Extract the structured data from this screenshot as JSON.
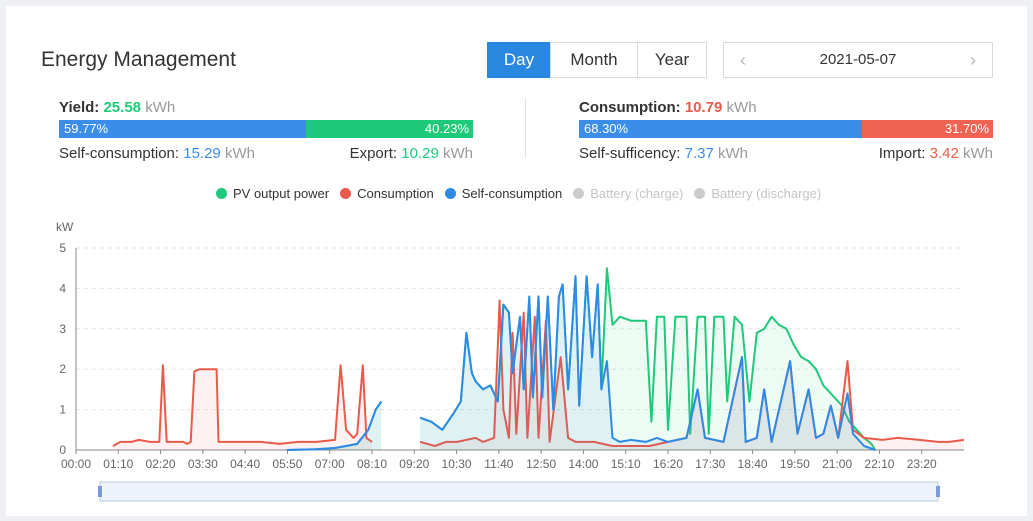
{
  "header": {
    "title": "Energy Management",
    "tabs": [
      {
        "label": "Day",
        "active": true
      },
      {
        "label": "Month",
        "active": false
      },
      {
        "label": "Year",
        "active": false
      }
    ],
    "date": "2021-05-07",
    "prev_icon": "chevron-left-icon",
    "next_icon": "chevron-right-icon"
  },
  "yield": {
    "label": "Yield:",
    "value": "25.58",
    "unit": "kWh",
    "self_pct": "59.77%",
    "export_pct": "40.23%",
    "self_fraction": 0.5977,
    "self_label": "Self-consumption:",
    "self_value": "15.29",
    "export_label": "Export:",
    "export_value": "10.29"
  },
  "consumption": {
    "label": "Consumption:",
    "value": "10.79",
    "unit": "kWh",
    "sufficiency_pct": "68.30%",
    "import_pct": "31.70%",
    "sufficiency_fraction": 0.683,
    "sufficiency_label": "Self-sufficency:",
    "sufficiency_value": "7.37",
    "import_label": "Import:",
    "import_value": "3.42"
  },
  "colors": {
    "pv": "#1fc97a",
    "consumption": "#ea5a4a",
    "self": "#2e8ae6",
    "disabled": "#cccccc",
    "accent": "#2a87e0"
  },
  "legend": [
    {
      "name": "PV output power",
      "color": "#1fc97a",
      "enabled": true
    },
    {
      "name": "Consumption",
      "color": "#ea5a4a",
      "enabled": true
    },
    {
      "name": "Self-consumption",
      "color": "#2e8ae6",
      "enabled": true
    },
    {
      "name": "Battery (charge)",
      "color": "#cccccc",
      "enabled": false
    },
    {
      "name": "Battery (discharge)",
      "color": "#cccccc",
      "enabled": false
    }
  ],
  "chart_data": {
    "type": "line",
    "ylabel": "kW",
    "ylim": [
      0,
      5
    ],
    "yticks": [
      0,
      1,
      2,
      3,
      4,
      5
    ],
    "xlim": [
      0,
      24
    ],
    "xtick_labels": [
      "00:00",
      "01:10",
      "02:20",
      "03:30",
      "04:40",
      "05:50",
      "07:00",
      "08:10",
      "09:20",
      "10:30",
      "11:40",
      "12:50",
      "14:00",
      "15:10",
      "16:20",
      "17:30",
      "18:40",
      "19:50",
      "21:00",
      "22:10",
      "23:20"
    ],
    "grid": "horizontal dashed",
    "series": [
      {
        "name": "PV output power",
        "color": "#1fc97a",
        "points": [
          [
            5.7,
            0
          ],
          [
            6.5,
            0.02
          ],
          [
            7.0,
            0.05
          ],
          [
            7.3,
            0.1
          ],
          [
            7.6,
            0.15
          ],
          [
            7.9,
            0.5
          ],
          [
            8.1,
            1.0
          ],
          [
            8.25,
            1.2
          ],
          [
            9.3,
            0.8
          ],
          [
            9.6,
            0.7
          ],
          [
            9.9,
            0.5
          ],
          [
            10.2,
            0.9
          ],
          [
            10.4,
            1.2
          ],
          [
            10.55,
            2.9
          ],
          [
            10.7,
            1.9
          ],
          [
            10.8,
            1.7
          ],
          [
            11.0,
            1.5
          ],
          [
            11.2,
            1.6
          ],
          [
            11.4,
            1.2
          ],
          [
            11.55,
            3.6
          ],
          [
            11.7,
            3.4
          ],
          [
            11.8,
            1.9
          ],
          [
            12.0,
            3.3
          ],
          [
            12.1,
            1.5
          ],
          [
            12.25,
            3.8
          ],
          [
            12.35,
            1.3
          ],
          [
            12.5,
            3.8
          ],
          [
            12.6,
            1.3
          ],
          [
            12.75,
            3.8
          ],
          [
            12.9,
            1.0
          ],
          [
            13.05,
            3.8
          ],
          [
            13.15,
            4.1
          ],
          [
            13.3,
            1.5
          ],
          [
            13.5,
            4.3
          ],
          [
            13.6,
            1.1
          ],
          [
            13.8,
            4.3
          ],
          [
            13.95,
            2.3
          ],
          [
            14.1,
            4.1
          ],
          [
            14.2,
            1.5
          ],
          [
            14.35,
            4.5
          ],
          [
            14.5,
            3.1
          ],
          [
            14.7,
            3.3
          ],
          [
            15.0,
            3.2
          ],
          [
            15.4,
            3.2
          ],
          [
            15.55,
            0.7
          ],
          [
            15.7,
            3.3
          ],
          [
            15.9,
            3.3
          ],
          [
            16.0,
            0.5
          ],
          [
            16.2,
            3.3
          ],
          [
            16.5,
            3.3
          ],
          [
            16.6,
            0.4
          ],
          [
            16.8,
            3.3
          ],
          [
            17.0,
            3.3
          ],
          [
            17.1,
            0.4
          ],
          [
            17.25,
            3.3
          ],
          [
            17.5,
            3.3
          ],
          [
            17.6,
            1.2
          ],
          [
            17.8,
            3.3
          ],
          [
            18.0,
            3.1
          ],
          [
            18.2,
            1.2
          ],
          [
            18.4,
            2.9
          ],
          [
            18.6,
            3.0
          ],
          [
            18.8,
            3.3
          ],
          [
            19.0,
            3.1
          ],
          [
            19.2,
            3.0
          ],
          [
            19.4,
            2.6
          ],
          [
            19.6,
            2.3
          ],
          [
            19.8,
            2.2
          ],
          [
            20.0,
            2.0
          ],
          [
            20.2,
            1.6
          ],
          [
            20.5,
            1.3
          ],
          [
            20.7,
            1.1
          ],
          [
            20.9,
            0.7
          ],
          [
            21.1,
            0.5
          ],
          [
            21.3,
            0.3
          ],
          [
            21.5,
            0.15
          ],
          [
            21.6,
            0
          ]
        ]
      },
      {
        "name": "Consumption",
        "color": "#ea5a4a",
        "points": [
          [
            1.0,
            0.1
          ],
          [
            1.2,
            0.2
          ],
          [
            1.5,
            0.2
          ],
          [
            1.7,
            0.25
          ],
          [
            2.0,
            0.2
          ],
          [
            2.25,
            0.2
          ],
          [
            2.35,
            2.1
          ],
          [
            2.45,
            0.2
          ],
          [
            2.9,
            0.2
          ],
          [
            3.0,
            0.15
          ],
          [
            3.1,
            0.2
          ],
          [
            3.2,
            1.95
          ],
          [
            3.35,
            2.0
          ],
          [
            3.8,
            2.0
          ],
          [
            3.85,
            0.2
          ],
          [
            4.5,
            0.2
          ],
          [
            5.0,
            0.2
          ],
          [
            5.5,
            0.15
          ],
          [
            6.0,
            0.2
          ],
          [
            6.5,
            0.2
          ],
          [
            7.0,
            0.25
          ],
          [
            7.15,
            2.1
          ],
          [
            7.3,
            0.5
          ],
          [
            7.5,
            0.3
          ],
          [
            7.6,
            0.4
          ],
          [
            7.75,
            2.1
          ],
          [
            7.85,
            0.3
          ],
          [
            8.0,
            0.2
          ],
          [
            9.3,
            0.2
          ],
          [
            9.7,
            0.1
          ],
          [
            10.0,
            0.2
          ],
          [
            10.3,
            0.2
          ],
          [
            10.8,
            0.3
          ],
          [
            11.0,
            0.2
          ],
          [
            11.3,
            0.3
          ],
          [
            11.45,
            3.7
          ],
          [
            11.55,
            1.0
          ],
          [
            11.7,
            0.3
          ],
          [
            11.8,
            2.9
          ],
          [
            11.9,
            0.4
          ],
          [
            12.1,
            3.4
          ],
          [
            12.2,
            0.3
          ],
          [
            12.4,
            3.3
          ],
          [
            12.5,
            0.3
          ],
          [
            12.7,
            3.2
          ],
          [
            12.8,
            0.2
          ],
          [
            13.1,
            2.3
          ],
          [
            13.3,
            0.3
          ],
          [
            13.5,
            0.2
          ],
          [
            14.0,
            0.2
          ],
          [
            14.5,
            0.1
          ],
          [
            15.0,
            0.1
          ],
          [
            15.5,
            0.1
          ],
          [
            16.0,
            0.2
          ],
          [
            16.5,
            0.3
          ],
          [
            16.8,
            1.5
          ],
          [
            17.0,
            0.3
          ],
          [
            17.5,
            0.2
          ],
          [
            18.0,
            2.3
          ],
          [
            18.1,
            0.2
          ],
          [
            18.4,
            0.3
          ],
          [
            18.6,
            1.5
          ],
          [
            18.8,
            0.2
          ],
          [
            19.3,
            2.2
          ],
          [
            19.5,
            0.4
          ],
          [
            19.8,
            1.5
          ],
          [
            20.0,
            0.3
          ],
          [
            20.2,
            0.4
          ],
          [
            20.4,
            1.1
          ],
          [
            20.6,
            0.3
          ],
          [
            20.85,
            2.2
          ],
          [
            21.0,
            0.5
          ],
          [
            21.3,
            0.3
          ],
          [
            21.8,
            0.25
          ],
          [
            22.2,
            0.3
          ],
          [
            22.8,
            0.25
          ],
          [
            23.3,
            0.2
          ],
          [
            23.6,
            0.2
          ],
          [
            24.0,
            0.25
          ]
        ]
      },
      {
        "name": "Self-consumption",
        "color": "#2e8ae6",
        "points": [
          [
            5.7,
            0
          ],
          [
            6.5,
            0.02
          ],
          [
            7.0,
            0.05
          ],
          [
            7.3,
            0.1
          ],
          [
            7.6,
            0.15
          ],
          [
            7.9,
            0.5
          ],
          [
            8.1,
            1.0
          ],
          [
            8.25,
            1.2
          ],
          [
            9.3,
            0.8
          ],
          [
            9.6,
            0.7
          ],
          [
            9.9,
            0.5
          ],
          [
            10.2,
            0.9
          ],
          [
            10.4,
            1.2
          ],
          [
            10.55,
            2.9
          ],
          [
            10.7,
            1.9
          ],
          [
            10.8,
            1.7
          ],
          [
            11.0,
            1.5
          ],
          [
            11.2,
            1.6
          ],
          [
            11.4,
            1.2
          ],
          [
            11.55,
            3.6
          ],
          [
            11.7,
            3.4
          ],
          [
            11.8,
            1.9
          ],
          [
            12.0,
            3.3
          ],
          [
            12.1,
            1.5
          ],
          [
            12.25,
            3.8
          ],
          [
            12.35,
            1.3
          ],
          [
            12.5,
            3.8
          ],
          [
            12.6,
            1.3
          ],
          [
            12.75,
            3.8
          ],
          [
            12.9,
            1.0
          ],
          [
            13.05,
            3.8
          ],
          [
            13.15,
            4.1
          ],
          [
            13.3,
            1.5
          ],
          [
            13.5,
            4.3
          ],
          [
            13.6,
            1.1
          ],
          [
            13.8,
            4.3
          ],
          [
            13.95,
            2.3
          ],
          [
            14.1,
            4.1
          ],
          [
            14.2,
            1.5
          ],
          [
            14.35,
            2.2
          ],
          [
            14.5,
            0.3
          ],
          [
            14.7,
            0.2
          ],
          [
            15.0,
            0.25
          ],
          [
            15.4,
            0.2
          ],
          [
            15.7,
            0.3
          ],
          [
            16.0,
            0.2
          ],
          [
            16.5,
            0.3
          ],
          [
            16.8,
            1.5
          ],
          [
            17.0,
            0.3
          ],
          [
            17.5,
            0.2
          ],
          [
            18.0,
            2.3
          ],
          [
            18.1,
            0.2
          ],
          [
            18.4,
            0.3
          ],
          [
            18.6,
            1.5
          ],
          [
            18.8,
            0.2
          ],
          [
            19.3,
            2.2
          ],
          [
            19.5,
            0.4
          ],
          [
            19.8,
            1.5
          ],
          [
            20.0,
            0.3
          ],
          [
            20.2,
            0.4
          ],
          [
            20.4,
            1.1
          ],
          [
            20.6,
            0.3
          ],
          [
            20.85,
            1.4
          ],
          [
            21.0,
            0.4
          ],
          [
            21.3,
            0.1
          ],
          [
            21.6,
            0
          ]
        ]
      }
    ]
  }
}
